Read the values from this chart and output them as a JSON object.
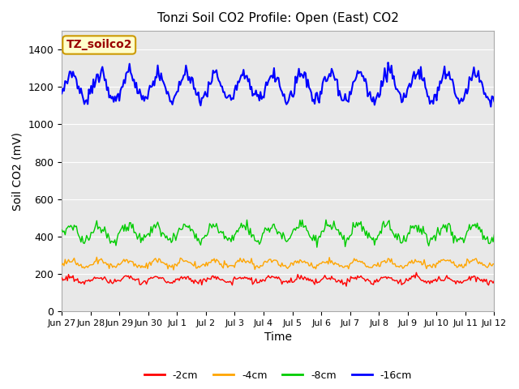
{
  "title": "Tonzi Soil CO2 Profile: Open (East) CO2",
  "ylabel": "Soil CO2 (mV)",
  "xlabel": "Time",
  "ylim": [
    0,
    1500
  ],
  "yticks": [
    0,
    200,
    400,
    600,
    800,
    1000,
    1200,
    1400
  ],
  "legend_labels": [
    "-2cm",
    "-4cm",
    "-8cm",
    "-16cm"
  ],
  "legend_colors": [
    "#ff0000",
    "#ffa500",
    "#00cc00",
    "#0000ff"
  ],
  "annotation_text": "TZ_soilco2",
  "annotation_bg": "#ffffcc",
  "annotation_border": "#cc9900",
  "background_color": "#e8e8e8",
  "x_tick_labels": [
    "Jun 27",
    "Jun 28",
    "Jun 29",
    "Jun 30",
    "Jul 1",
    "Jul 2",
    "Jul 3",
    "Jul 4",
    "Jul 5",
    "Jul 6",
    "Jul 7",
    "Jul 8",
    "Jul 9",
    "Jul 10",
    "Jul 11",
    "Jul 12"
  ],
  "x_tick_positions": [
    0,
    1,
    2,
    3,
    4,
    5,
    6,
    7,
    8,
    9,
    10,
    11,
    12,
    13,
    14,
    15
  ],
  "num_points": 384,
  "xlim": [
    0,
    15
  ]
}
